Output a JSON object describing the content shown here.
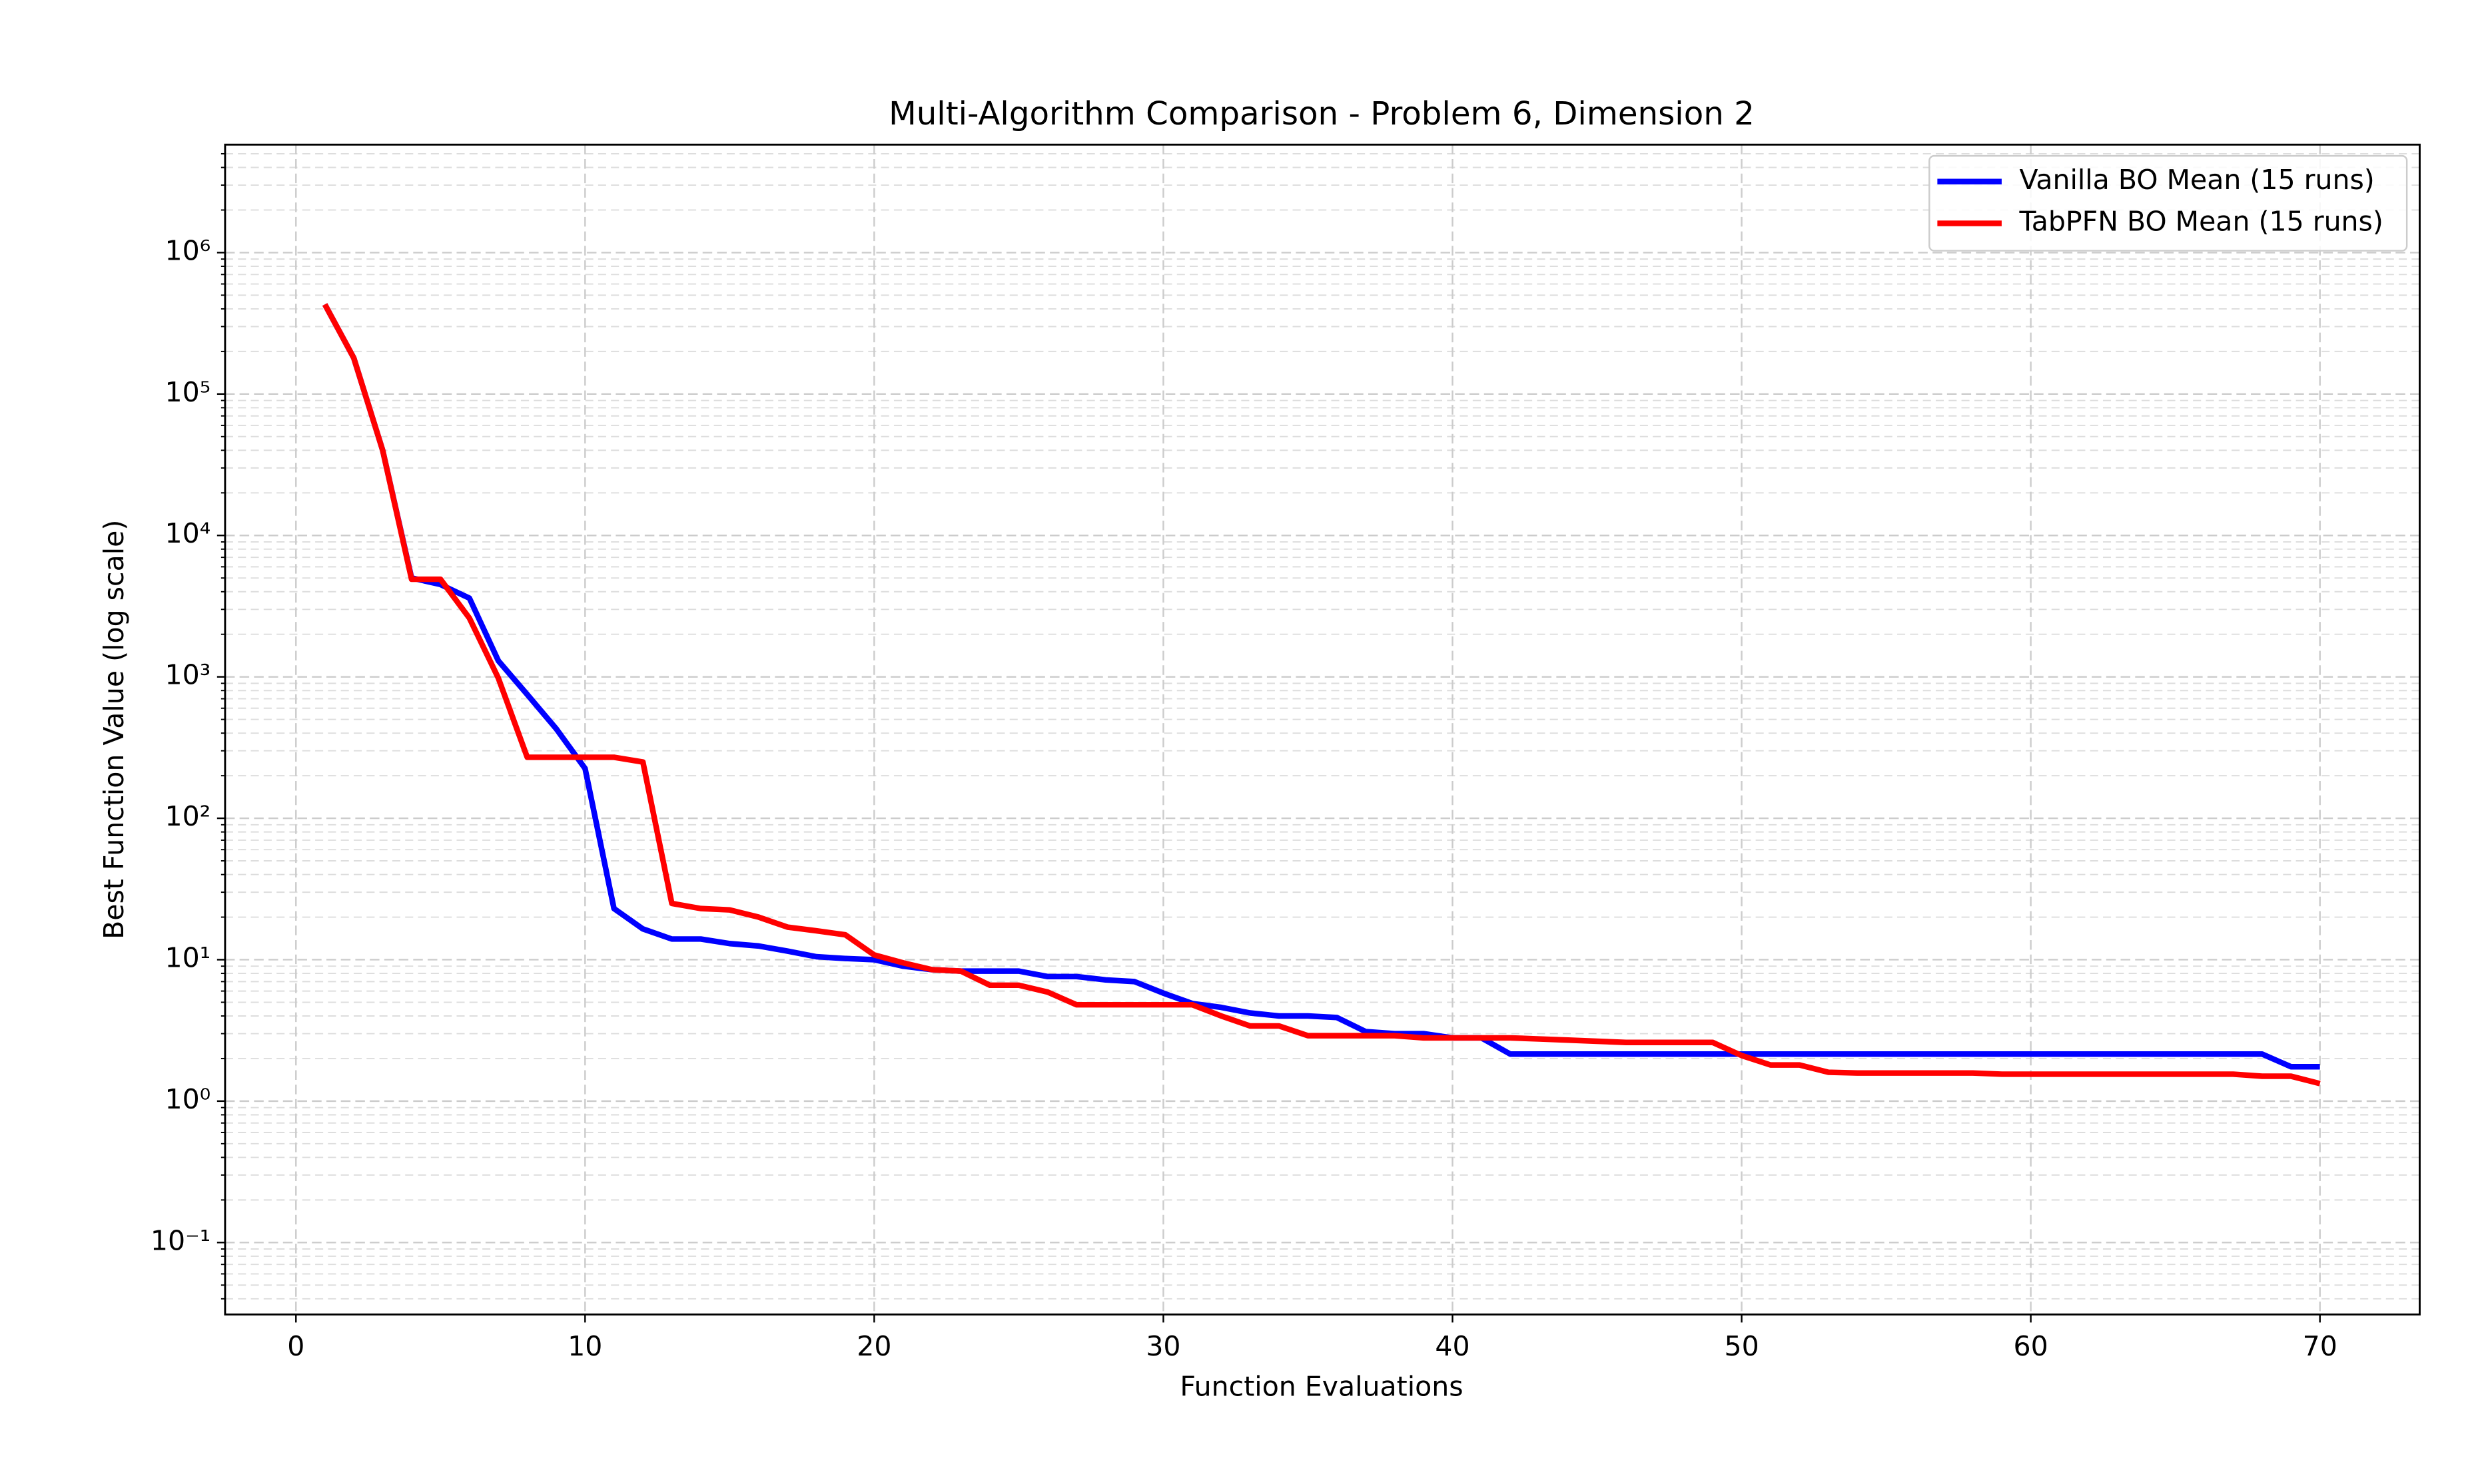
{
  "chart_data": {
    "type": "line",
    "title": "Multi-Algorithm Comparison - Problem 6, Dimension 2",
    "x_label": "Function Evaluations",
    "y_label": "Best Function Value (log scale)",
    "log_y": true,
    "grid": true,
    "legend": "upper right",
    "xlim": [
      -2.45,
      73.45
    ],
    "ylim": [
      0.031,
      5800000
    ],
    "xticks": [
      0,
      10,
      20,
      30,
      40,
      50,
      60,
      70
    ],
    "yticks": [
      {
        "value": 0.1,
        "label": "10⁻¹"
      },
      {
        "value": 1,
        "label": "10⁰"
      },
      {
        "value": 10,
        "label": "10¹"
      },
      {
        "value": 100,
        "label": "10²"
      },
      {
        "value": 1000,
        "label": "10³"
      },
      {
        "value": 10000,
        "label": "10⁴"
      },
      {
        "value": 100000,
        "label": "10⁵"
      },
      {
        "value": 1000000,
        "label": "10⁶"
      }
    ],
    "x": [
      1,
      2,
      3,
      4,
      5,
      6,
      7,
      8,
      9,
      10,
      11,
      12,
      13,
      14,
      15,
      16,
      17,
      18,
      19,
      20,
      21,
      22,
      23,
      24,
      25,
      26,
      27,
      28,
      29,
      30,
      31,
      32,
      33,
      34,
      35,
      36,
      37,
      38,
      39,
      40,
      41,
      42,
      43,
      44,
      45,
      46,
      47,
      48,
      49,
      50,
      51,
      52,
      53,
      54,
      55,
      56,
      57,
      58,
      59,
      60,
      61,
      62,
      63,
      64,
      65,
      66,
      67,
      68,
      69,
      70
    ],
    "series": [
      {
        "name": "Vanilla BO Mean (15 runs)",
        "color": "#0000ff",
        "values": [
          430000,
          180000,
          40000,
          5000,
          4500,
          3600,
          1300,
          750,
          430,
          225,
          23,
          16.5,
          14,
          14,
          13,
          12.5,
          11.5,
          10.5,
          10.2,
          10,
          9,
          8.5,
          8.3,
          8.3,
          8.3,
          7.6,
          7.6,
          7.2,
          7.0,
          5.8,
          4.9,
          4.6,
          4.2,
          4.0,
          4.0,
          3.9,
          3.1,
          3.0,
          3.0,
          2.8,
          2.8,
          2.15,
          2.15,
          2.15,
          2.15,
          2.15,
          2.15,
          2.15,
          2.15,
          2.15,
          2.15,
          2.15,
          2.15,
          2.15,
          2.15,
          2.15,
          2.15,
          2.15,
          2.15,
          2.15,
          2.15,
          2.15,
          2.15,
          2.15,
          2.15,
          2.15,
          2.15,
          2.15,
          1.75,
          1.75
        ]
      },
      {
        "name": "TabPFN BO Mean (15 runs)",
        "color": "#ff0000",
        "values": [
          430000,
          180000,
          40000,
          4900,
          4900,
          2600,
          980,
          270,
          270,
          270,
          270,
          250,
          25,
          23,
          22.5,
          20,
          17,
          16,
          15,
          10.8,
          9.5,
          8.5,
          8.3,
          6.6,
          6.6,
          5.9,
          4.8,
          4.8,
          4.8,
          4.8,
          4.8,
          4.0,
          3.4,
          3.4,
          2.9,
          2.9,
          2.9,
          2.9,
          2.8,
          2.8,
          2.8,
          2.8,
          2.75,
          2.7,
          2.65,
          2.6,
          2.6,
          2.6,
          2.6,
          2.1,
          1.8,
          1.8,
          1.6,
          1.58,
          1.58,
          1.58,
          1.58,
          1.58,
          1.55,
          1.55,
          1.55,
          1.55,
          1.55,
          1.55,
          1.55,
          1.55,
          1.55,
          1.5,
          1.5,
          1.33
        ]
      }
    ]
  }
}
